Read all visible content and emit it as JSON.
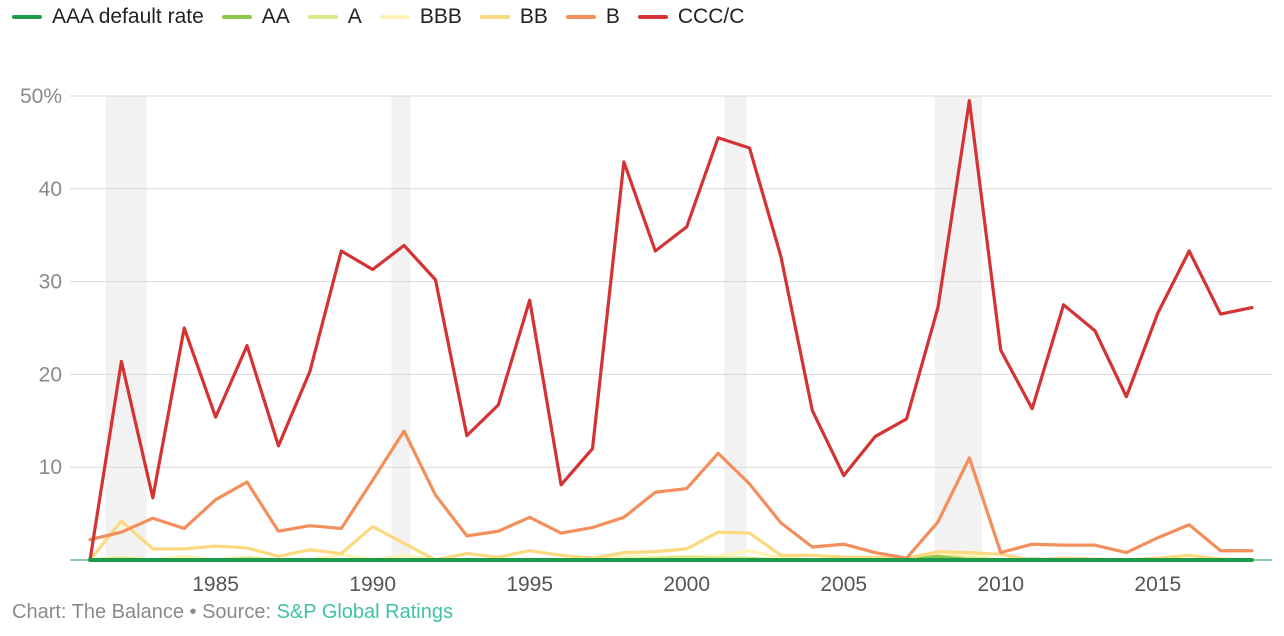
{
  "chart_data": {
    "type": "line",
    "title": "",
    "xlabel": "",
    "ylabel": "",
    "x_ticks": [
      "1985",
      "1990",
      "1995",
      "2000",
      "2005",
      "2010",
      "2015"
    ],
    "y_ticks": [
      "50%",
      "40",
      "30",
      "20",
      "10"
    ],
    "ylim": [
      0,
      50
    ],
    "xlim": [
      1981,
      2018
    ],
    "grid": "horizontal",
    "legend_position": "top-left",
    "recession_bands": [
      [
        1981.5,
        1982.8
      ],
      [
        1990.6,
        1991.2
      ],
      [
        2001.2,
        2001.9
      ],
      [
        2007.9,
        2009.4
      ]
    ],
    "x": [
      1981,
      1982,
      1983,
      1984,
      1985,
      1986,
      1987,
      1988,
      1989,
      1990,
      1991,
      1992,
      1993,
      1994,
      1995,
      1996,
      1997,
      1998,
      1999,
      2000,
      2001,
      2002,
      2003,
      2004,
      2005,
      2006,
      2007,
      2008,
      2009,
      2010,
      2011,
      2012,
      2013,
      2014,
      2015,
      2016,
      2017,
      2018
    ],
    "series": [
      {
        "name": "AAA default rate",
        "color": "#1e9b4a",
        "values": [
          0,
          0,
          0,
          0,
          0,
          0,
          0,
          0,
          0,
          0,
          0,
          0,
          0,
          0,
          0,
          0,
          0,
          0,
          0,
          0,
          0,
          0,
          0,
          0,
          0,
          0,
          0,
          0,
          0,
          0,
          0,
          0,
          0,
          0,
          0,
          0,
          0,
          0
        ]
      },
      {
        "name": "AA",
        "color": "#8cc84b",
        "values": [
          0,
          0,
          0,
          0,
          0,
          0,
          0,
          0,
          0,
          0,
          0,
          0,
          0,
          0,
          0,
          0,
          0,
          0,
          0,
          0,
          0,
          0,
          0,
          0,
          0,
          0,
          0,
          0.4,
          0,
          0,
          0.1,
          0,
          0,
          0,
          0,
          0,
          0,
          0
        ]
      },
      {
        "name": "A",
        "color": "#dbe88a",
        "values": [
          0,
          0.2,
          0,
          0,
          0,
          0.2,
          0,
          0,
          0,
          0,
          0,
          0,
          0,
          0.1,
          0,
          0,
          0,
          0,
          0.2,
          0.3,
          0.2,
          0.2,
          0,
          0,
          0,
          0,
          0,
          0.4,
          0.2,
          0,
          0,
          0,
          0,
          0,
          0,
          0,
          0,
          0
        ]
      },
      {
        "name": "BBB",
        "color": "#fdf4b5",
        "values": [
          0,
          0.3,
          0,
          0.4,
          0,
          0.3,
          0,
          0,
          0.6,
          0,
          0.5,
          0,
          0,
          0,
          0,
          0,
          0.3,
          0.4,
          0.3,
          0.4,
          0.4,
          1.0,
          0.2,
          0,
          0,
          0.2,
          0,
          0.5,
          0.6,
          0,
          0.1,
          0,
          0,
          0,
          0,
          0,
          0,
          0
        ]
      },
      {
        "name": "BB",
        "color": "#fcd97f",
        "values": [
          0,
          4.2,
          1.2,
          1.2,
          1.5,
          1.3,
          0.4,
          1.1,
          0.7,
          3.6,
          1.8,
          0,
          0.7,
          0.3,
          1.0,
          0.5,
          0.2,
          0.8,
          0.9,
          1.2,
          3.0,
          2.9,
          0.5,
          0.5,
          0.3,
          0.3,
          0.2,
          0.9,
          0.8,
          0.6,
          0,
          0.2,
          0.1,
          0,
          0.2,
          0.5,
          0.1,
          0
        ]
      },
      {
        "name": "B",
        "color": "#f28f5c",
        "values": [
          2.2,
          3.0,
          4.5,
          3.4,
          6.5,
          8.4,
          3.1,
          3.7,
          3.4,
          8.6,
          13.9,
          7.0,
          2.6,
          3.1,
          4.6,
          2.9,
          3.5,
          4.6,
          7.3,
          7.7,
          11.5,
          8.2,
          4.0,
          1.4,
          1.7,
          0.8,
          0.2,
          4.1,
          11.0,
          0.8,
          1.7,
          1.6,
          1.6,
          0.8,
          2.4,
          3.8,
          1.0,
          1.0
        ]
      },
      {
        "name": "CCC/C",
        "color": "#d33333",
        "values": [
          0,
          21.4,
          6.7,
          25.0,
          15.4,
          23.1,
          12.3,
          20.3,
          33.3,
          31.3,
          33.9,
          30.2,
          13.4,
          16.7,
          28.0,
          8.1,
          12.0,
          42.9,
          33.3,
          35.9,
          45.5,
          44.4,
          32.7,
          16.1,
          9.1,
          13.3,
          15.2,
          27.2,
          49.5,
          22.6,
          16.3,
          27.5,
          24.7,
          17.6,
          26.6,
          33.3,
          26.5,
          27.2
        ]
      }
    ]
  },
  "footer": {
    "credit_prefix": "Chart: The Balance • Source: ",
    "source_link": "S&P Global Ratings"
  }
}
